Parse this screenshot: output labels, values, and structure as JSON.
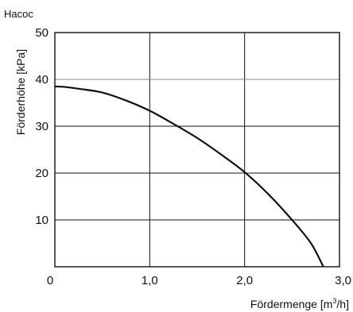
{
  "chart_data": {
    "type": "line",
    "title": "",
    "corner_label": "Hacoc",
    "xlabel": "Fördermenge  [m",
    "xlabel_superscript": "3",
    "xlabel_suffix": "/h]",
    "ylabel": "Förderhöhe [kPa]",
    "xlim": [
      0,
      3.0
    ],
    "ylim": [
      0,
      50
    ],
    "x_ticks": [
      {
        "value": 0,
        "label": "0"
      },
      {
        "value": 1.0,
        "label": "1,0"
      },
      {
        "value": 2.0,
        "label": "2,0"
      },
      {
        "value": 3.0,
        "label": "3,0"
      }
    ],
    "y_ticks": [
      {
        "value": 10,
        "label": "10"
      },
      {
        "value": 20,
        "label": "20"
      },
      {
        "value": 30,
        "label": "30"
      },
      {
        "value": 40,
        "label": "40"
      },
      {
        "value": 50,
        "label": "50"
      }
    ],
    "grid": true,
    "series": [
      {
        "x": [
          0,
          0.1,
          0.25,
          0.5,
          0.75,
          1.0,
          1.25,
          1.5,
          1.75,
          2.0,
          2.25,
          2.5,
          2.7,
          2.83
        ],
        "y": [
          38.5,
          38.4,
          38.0,
          37.2,
          35.5,
          33.3,
          30.5,
          27.5,
          24.0,
          20.2,
          15.5,
          10.0,
          5.0,
          0
        ]
      }
    ],
    "colors": {
      "curve": "#111111",
      "frame": "#111111",
      "grid": "#111111",
      "top_gridline": "#888888"
    }
  }
}
